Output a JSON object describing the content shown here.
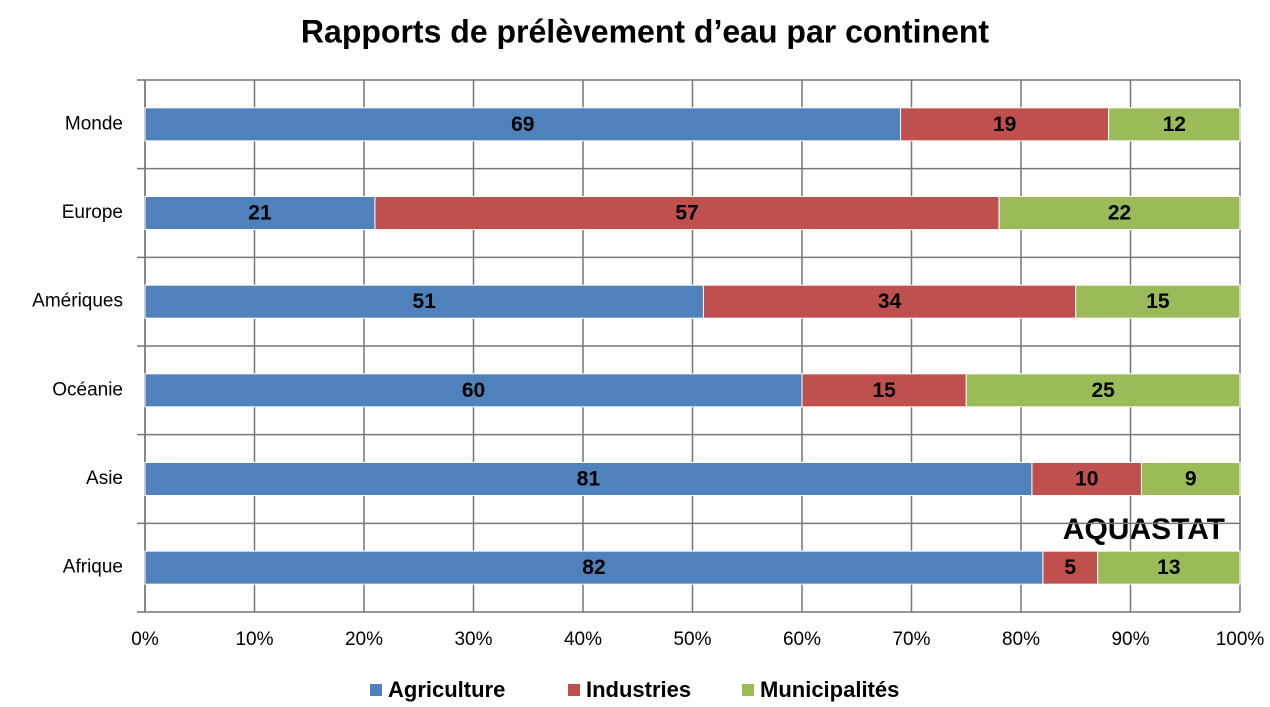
{
  "chart_data": {
    "type": "stacked_bar_horizontal",
    "title": "Rapports de prélèvement d’eau par continent",
    "categories": [
      "Monde",
      "Europe",
      "Amériques",
      "Océanie",
      "Asie",
      "Afrique"
    ],
    "series": [
      {
        "name": "Agriculture",
        "color": "#4f81bd",
        "values": [
          69,
          21,
          51,
          60,
          81,
          82
        ]
      },
      {
        "name": "Industries",
        "color": "#c0504d",
        "values": [
          19,
          57,
          34,
          15,
          10,
          5
        ]
      },
      {
        "name": "Municipalités",
        "color": "#9bbb59",
        "values": [
          12,
          22,
          15,
          25,
          9,
          13
        ]
      }
    ],
    "xlim": [
      0,
      100
    ],
    "xticks": [
      {
        "value": 0,
        "label": "0%"
      },
      {
        "value": 10,
        "label": "10%"
      },
      {
        "value": 20,
        "label": "20%"
      },
      {
        "value": 30,
        "label": "30%"
      },
      {
        "value": 40,
        "label": "40%"
      },
      {
        "value": 50,
        "label": "50%"
      },
      {
        "value": 60,
        "label": "60%"
      },
      {
        "value": 70,
        "label": "70%"
      },
      {
        "value": 80,
        "label": "80%"
      },
      {
        "value": 90,
        "label": "90%"
      },
      {
        "value": 100,
        "label": "100%"
      }
    ],
    "grid": true,
    "legend": "bottom",
    "annotation": "AQUASTAT"
  }
}
